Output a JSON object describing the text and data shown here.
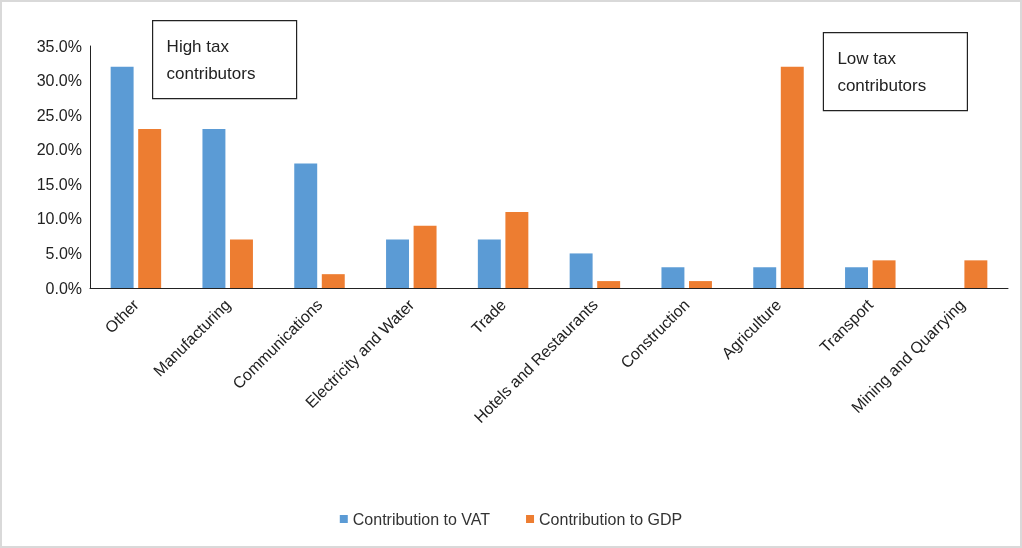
{
  "chart_data": {
    "type": "bar",
    "categories": [
      "Other",
      "Manufacturing",
      "Communications",
      "Electricity and Water",
      "Trade",
      "Hotels and Restaurants",
      "Construction",
      "Agriculture",
      "Transport",
      "Mining and Quarrying"
    ],
    "series": [
      {
        "name": "Contribution to VAT",
        "color": "#5b9bd5",
        "values": [
          32,
          23,
          18,
          7,
          7,
          5,
          3,
          3,
          3,
          0
        ]
      },
      {
        "name": "Contribution to GDP",
        "color": "#ed7d31",
        "values": [
          23,
          7,
          2,
          9,
          11,
          1,
          1,
          32,
          4,
          4
        ]
      }
    ],
    "ylim": [
      0,
      35
    ],
    "yticks": [
      {
        "value": 0,
        "label": "0.0%"
      },
      {
        "value": 5,
        "label": "5.0%"
      },
      {
        "value": 10,
        "label": "10.0%"
      },
      {
        "value": 15,
        "label": "15.0%"
      },
      {
        "value": 20,
        "label": "20.0%"
      },
      {
        "value": 25,
        "label": "25.0%"
      },
      {
        "value": 30,
        "label": "30.0%"
      },
      {
        "value": 35,
        "label": "35.0%"
      }
    ],
    "annotations": [
      "High tax contributors",
      "Low tax contributors"
    ],
    "grid": false,
    "legend": "bottom"
  }
}
